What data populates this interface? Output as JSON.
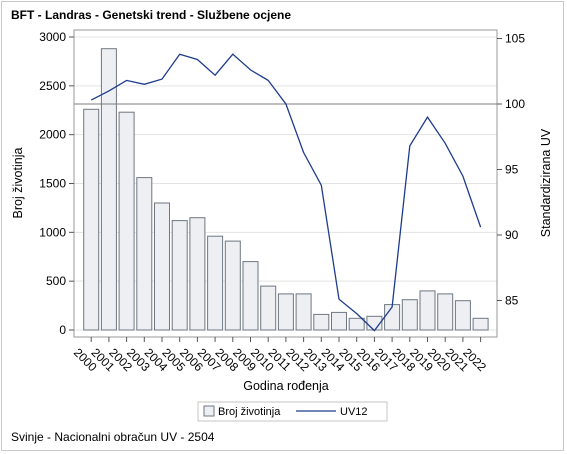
{
  "title": "BFT - Landras - Genetski trend - Službene ocjene",
  "footnote": "Svinje - Nacionalni obračun UV - 2504",
  "chart_data": {
    "type": "bar",
    "title": "BFT - Landras - Genetski trend - Službene ocjene",
    "xlabel": "Godina rođenja",
    "ylabel": "Broj životinja",
    "y2label": "Standardizirana UV",
    "categories": [
      "2000",
      "2001",
      "2002",
      "2003",
      "2004",
      "2005",
      "2006",
      "2007",
      "2008",
      "2009",
      "2010",
      "2011",
      "2012",
      "2013",
      "2014",
      "2015",
      "2016",
      "2017",
      "2018",
      "2019",
      "2020",
      "2021",
      "2022"
    ],
    "ylim": [
      0,
      3000
    ],
    "yticks": [
      0,
      500,
      1000,
      1500,
      2000,
      2500,
      3000
    ],
    "y2lim": [
      82.5,
      105
    ],
    "y2ticks": [
      85,
      90,
      95,
      100,
      105
    ],
    "reference_line_y2": 100,
    "series": [
      {
        "name": "Broj životinja",
        "type": "bar",
        "axis": "left",
        "color": "#edeff3",
        "stroke": "#6e7782",
        "values": [
          2260,
          2880,
          2230,
          1560,
          1300,
          1120,
          1150,
          960,
          910,
          700,
          450,
          370,
          370,
          160,
          180,
          120,
          140,
          260,
          310,
          400,
          370,
          300,
          120
        ]
      },
      {
        "name": "UV12",
        "type": "line",
        "axis": "right",
        "color": "#1f3c8c",
        "values": [
          100.3,
          101.0,
          101.8,
          101.5,
          101.9,
          103.8,
          103.4,
          102.2,
          103.8,
          102.6,
          101.8,
          100.0,
          96.3,
          93.8,
          85.1,
          84.0,
          82.7,
          84.5,
          96.8,
          99.0,
          97.0,
          94.5,
          90.6
        ]
      }
    ],
    "grid": "horizontal",
    "legend": "bottom"
  }
}
